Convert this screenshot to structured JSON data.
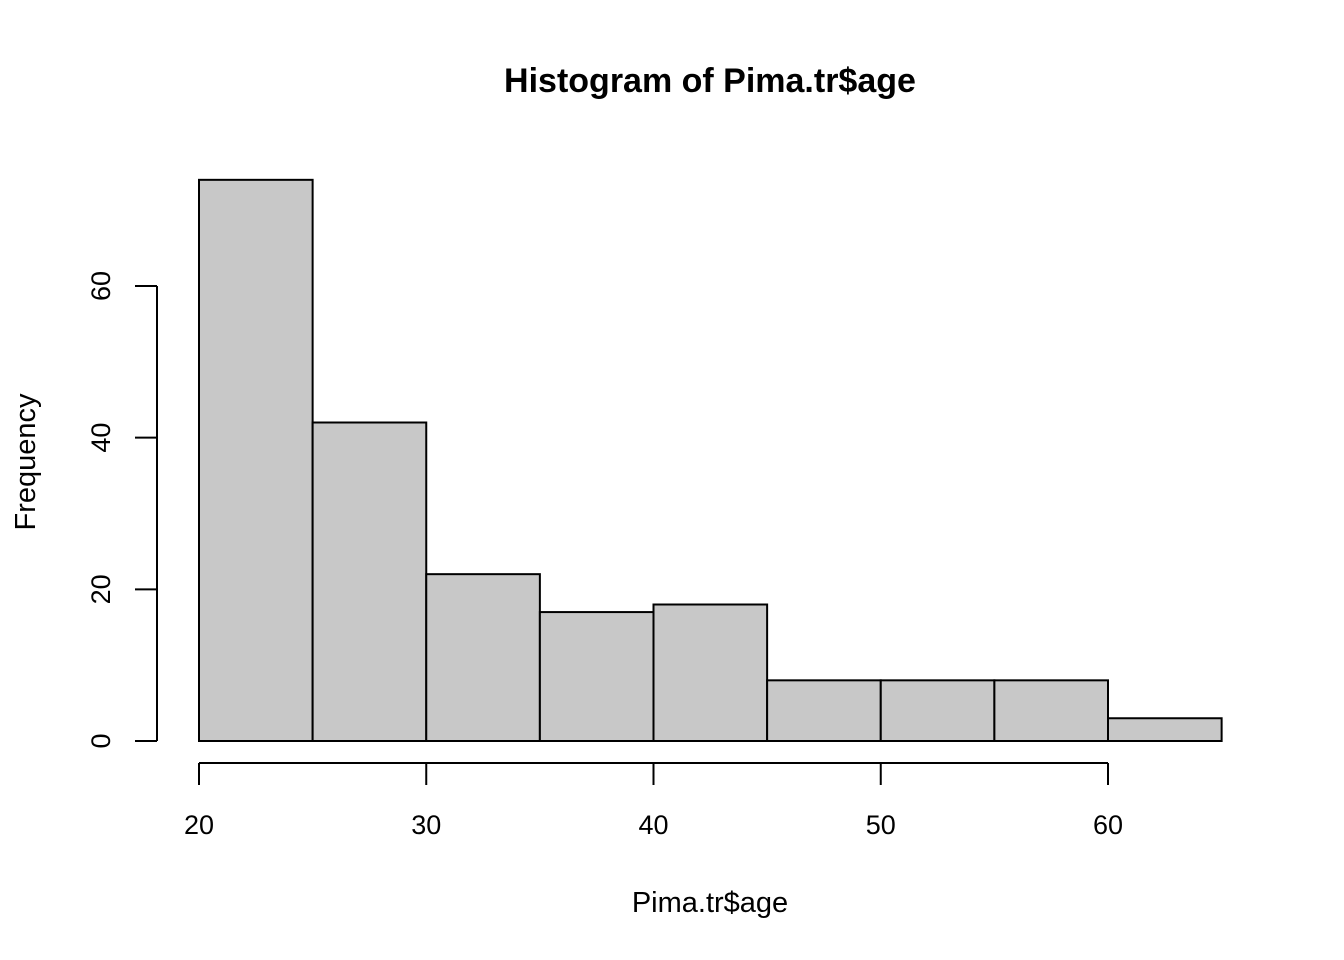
{
  "chart_data": {
    "type": "bar",
    "title": "Histogram of Pima.tr$age",
    "xlabel": "Pima.tr$age",
    "ylabel": "Frequency",
    "bins": [
      [
        20,
        25
      ],
      [
        25,
        30
      ],
      [
        30,
        35
      ],
      [
        35,
        40
      ],
      [
        40,
        45
      ],
      [
        45,
        50
      ],
      [
        50,
        55
      ],
      [
        55,
        60
      ],
      [
        60,
        65
      ]
    ],
    "values": [
      74,
      42,
      22,
      17,
      18,
      8,
      8,
      8,
      3
    ],
    "xlim": [
      20,
      65
    ],
    "ylim": [
      0,
      74
    ],
    "xticks": [
      20,
      30,
      40,
      50,
      60
    ],
    "yticks": [
      0,
      20,
      40,
      60
    ],
    "bar_color": "#C8C8C8",
    "edge_color": "#000000",
    "grid": false
  }
}
